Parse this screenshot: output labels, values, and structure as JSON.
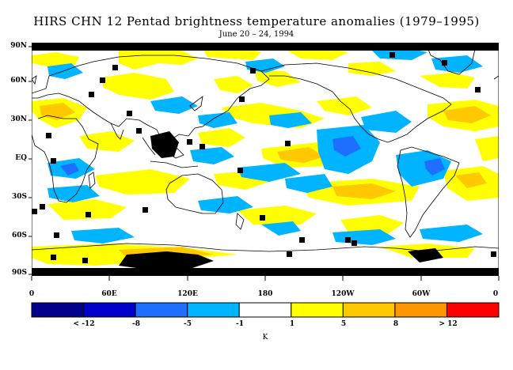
{
  "title": "HIRS CHN 12 Pentad brightness temperature anomalies (1979–1995)",
  "subtitle": "June 20 – 24, 1994",
  "lat_labels": [
    "90N",
    "60N",
    "30N",
    "EQ",
    "30S",
    "60S",
    "90S"
  ],
  "lon_labels": [
    "0",
    "60E",
    "120E",
    "180",
    "120W",
    "60W",
    "0"
  ],
  "colorbar": {
    "colors": [
      "#00008b",
      "#0000cd",
      "#1e6eff",
      "#00b4ff",
      "#ffffff",
      "#ffff00",
      "#ffc800",
      "#ff9600",
      "#ff0000"
    ],
    "labels": [
      "< -12",
      "-8",
      "-5",
      "-1",
      "1",
      "5",
      "8",
      "> 12"
    ],
    "unit": "K"
  },
  "colors": {
    "missing": "#000000",
    "coastline": "#000000",
    "cold_anomaly": "#00b4ff",
    "strong_cold": "#1e6eff",
    "warm_anomaly": "#ffff00",
    "strong_warm": "#ffc800"
  }
}
